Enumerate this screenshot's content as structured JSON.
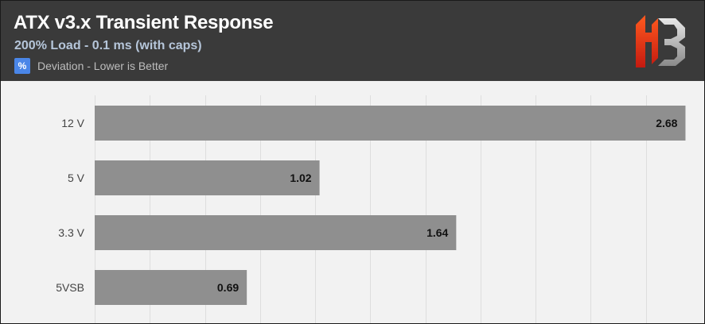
{
  "header": {
    "title": "ATX v3.x Transient Response",
    "subtitle": "200% Load - 0.1 ms (with caps)",
    "legend_icon": "%",
    "legend_label": "Deviation - Lower is Better",
    "background": "#3a3a3a",
    "logo": "hwbusters-logo"
  },
  "chart_data": {
    "type": "bar",
    "orientation": "horizontal",
    "categories": [
      "12 V",
      "5 V",
      "3.3 V",
      "5VSB"
    ],
    "series": [
      {
        "name": "Deviation - Lower is Better",
        "values": [
          2.68,
          1.02,
          1.64,
          0.69
        ],
        "color": "#8f8f8f"
      }
    ],
    "data_labels": [
      "2.68",
      "1.02",
      "1.64",
      "0.69"
    ],
    "title": "ATX v3.x Transient Response",
    "subtitle": "200% Load - 0.1 ms (with caps)",
    "xlabel": "",
    "ylabel": "",
    "xlim": [
      0,
      2.7
    ],
    "grid": true,
    "gridlines_major_step": 0.5,
    "legend_position": "top-left"
  }
}
